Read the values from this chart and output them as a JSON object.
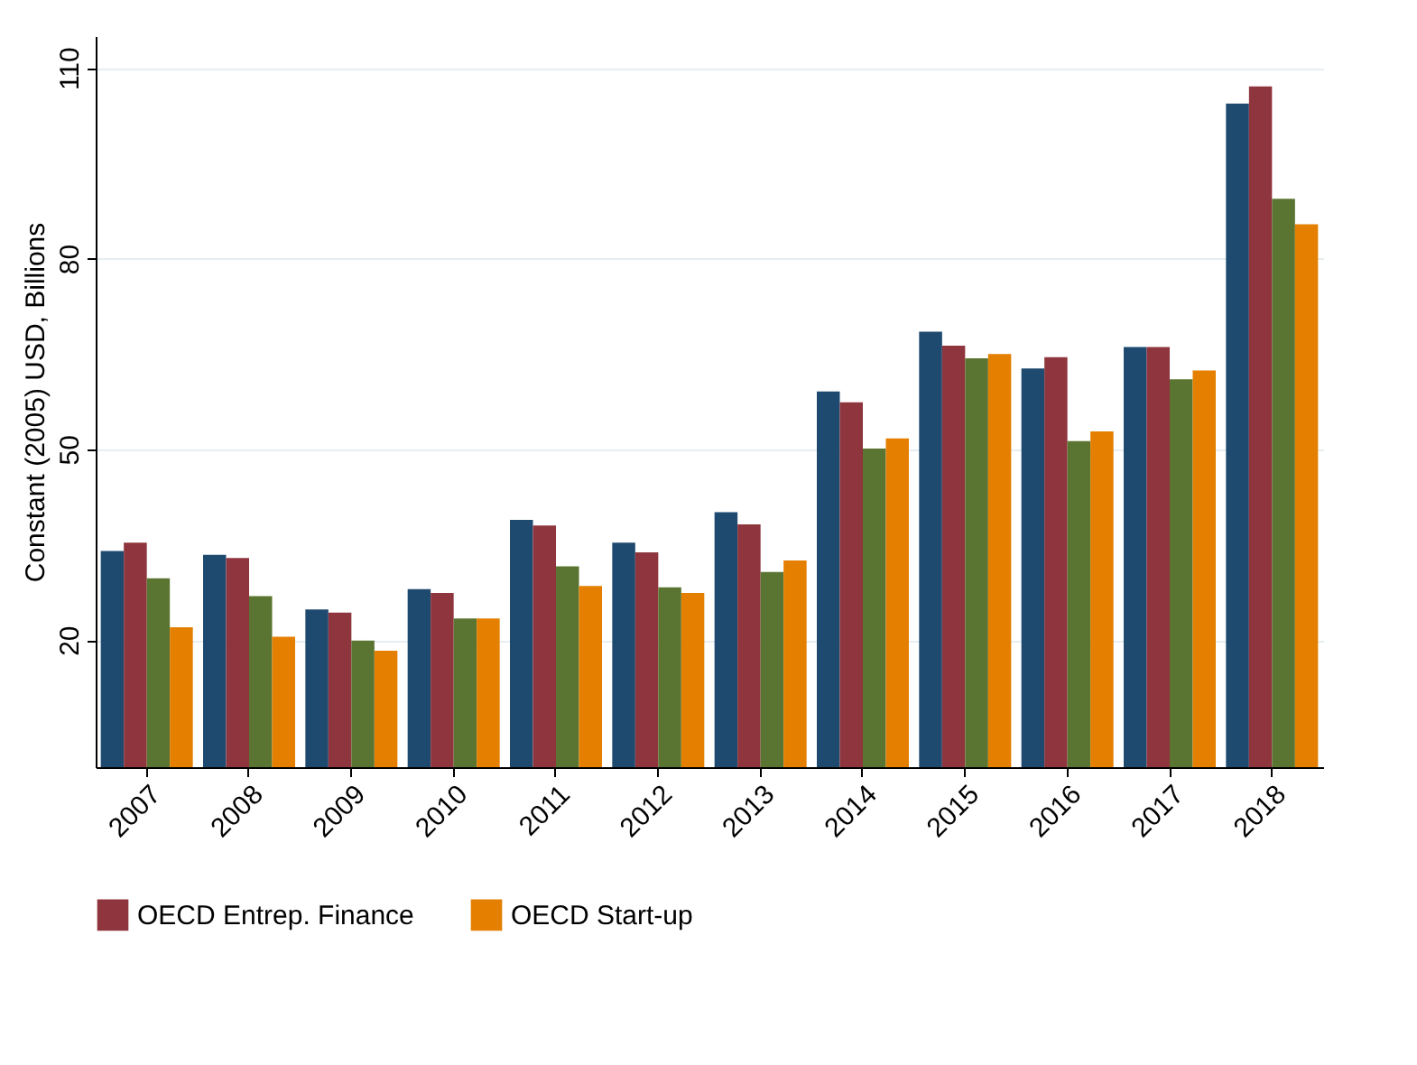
{
  "chart_data": {
    "type": "bar",
    "ylabel": "Constant (2005) USD, Billions",
    "categories": [
      "2007",
      "2008",
      "2009",
      "2010",
      "2011",
      "2012",
      "2013",
      "2014",
      "2015",
      "2016",
      "2017",
      "2018"
    ],
    "series": [
      {
        "color": "#1f4a70",
        "values": [
          34.0,
          33.4,
          24.8,
          28.0,
          38.9,
          35.3,
          40.1,
          59.1,
          68.5,
          62.7,
          66.1,
          104.4
        ]
      },
      {
        "name": "OECD Entrep. Finance",
        "color": "#8f353d",
        "values": [
          35.3,
          32.9,
          24.3,
          27.4,
          38.0,
          33.8,
          38.2,
          57.4,
          66.3,
          64.5,
          66.1,
          107.1
        ]
      },
      {
        "color": "#5a7431",
        "values": [
          29.7,
          26.9,
          19.9,
          23.4,
          31.6,
          28.3,
          30.7,
          50.1,
          64.3,
          51.3,
          61.0,
          89.4
        ]
      },
      {
        "name": "OECD Start-up",
        "color": "#e47f00",
        "values": [
          22.0,
          20.5,
          18.3,
          23.4,
          28.5,
          27.4,
          32.5,
          51.7,
          65.0,
          52.8,
          62.4,
          85.4
        ]
      }
    ],
    "ylim": [
      0,
      115
    ],
    "yticks": [
      20,
      50,
      80,
      110
    ],
    "grid": "y",
    "legend": "bottom"
  }
}
